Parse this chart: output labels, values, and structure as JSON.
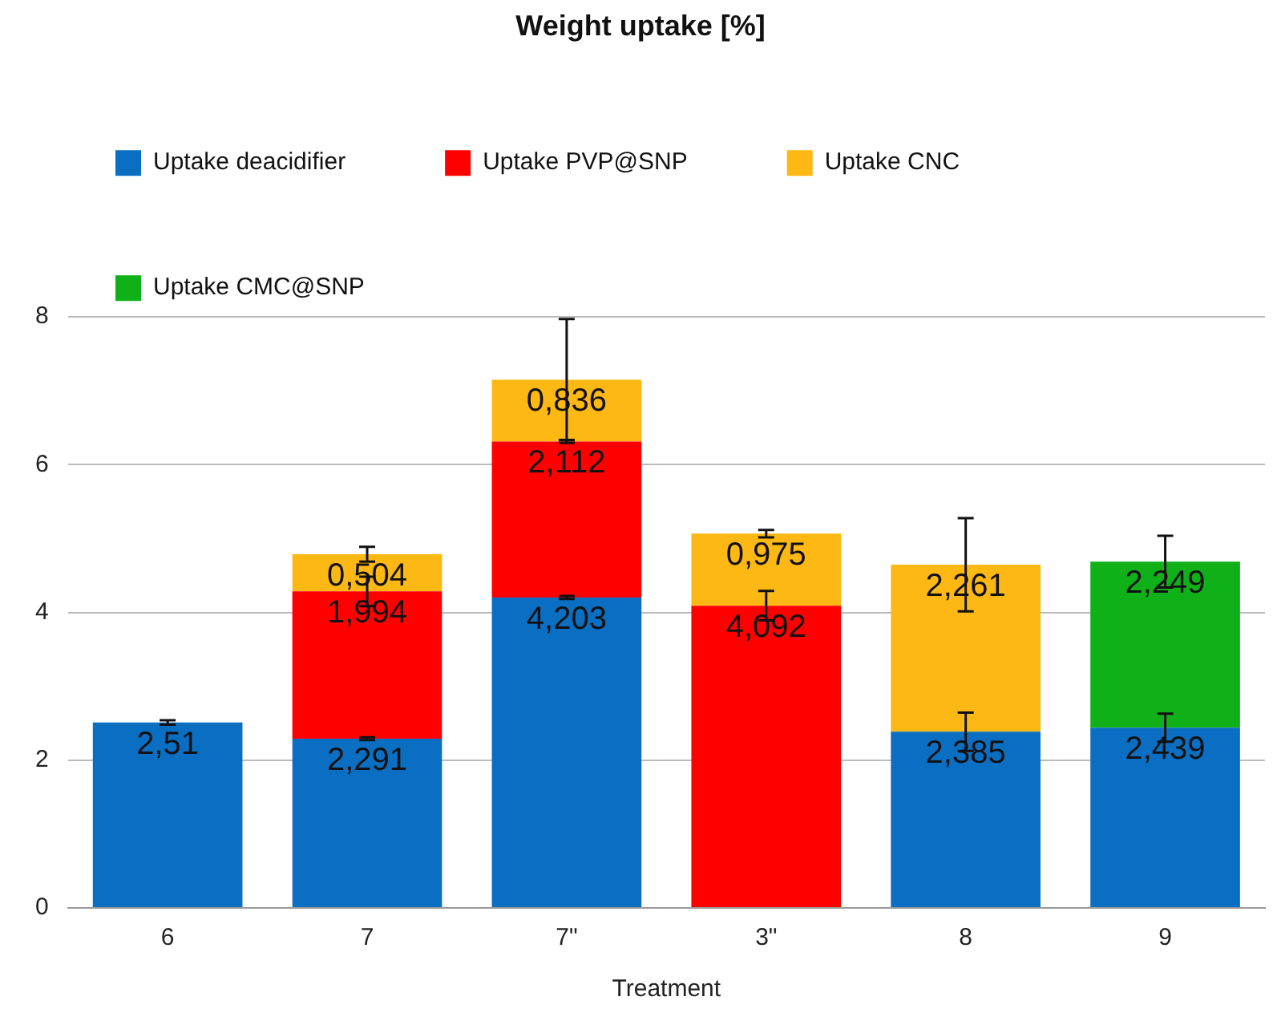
{
  "chart_data": {
    "type": "bar",
    "title": "Weight uptake [%]",
    "xlabel": "Treatment",
    "categories": [
      "6",
      "7",
      "7\"",
      "3\"",
      "8",
      "9"
    ],
    "stacked": true,
    "ylim": [
      0,
      8
    ],
    "yticks": [
      0,
      2,
      4,
      6,
      8
    ],
    "grid": "y",
    "legend": "top",
    "series": [
      {
        "name": "Uptake deacidifier",
        "color": "#0a6fc2",
        "values": [
          2.51,
          2.291,
          4.203,
          null,
          2.385,
          2.439
        ],
        "errors": [
          0.03,
          0.02,
          0.02,
          null,
          0.26,
          0.19
        ],
        "value_labels": [
          "2,51",
          "2,291",
          "4,203",
          null,
          "2,385",
          "2,439"
        ]
      },
      {
        "name": "Uptake PVP@SNP",
        "color": "#ff0000",
        "values": [
          null,
          1.994,
          2.112,
          4.092,
          null,
          null
        ],
        "errors": [
          null,
          0.2,
          0.02,
          0.2,
          null,
          null
        ],
        "value_labels": [
          null,
          "1,994",
          "2,112",
          "4,092",
          null,
          null
        ]
      },
      {
        "name": "Uptake CNC",
        "color": "#fdb813",
        "values": [
          null,
          0.504,
          0.836,
          0.975,
          2.261,
          null
        ],
        "errors": [
          null,
          0.1,
          0.82,
          0.05,
          0.63,
          null
        ],
        "value_labels": [
          null,
          "0,504",
          "0,836",
          "0,975",
          "2,261",
          null
        ]
      },
      {
        "name": "Uptake CMC@SNP",
        "color": "#10b018",
        "values": [
          null,
          null,
          null,
          null,
          null,
          2.249
        ],
        "errors": [
          null,
          null,
          null,
          null,
          null,
          0.35
        ],
        "value_labels": [
          null,
          null,
          null,
          null,
          null,
          "2,249"
        ]
      }
    ]
  }
}
